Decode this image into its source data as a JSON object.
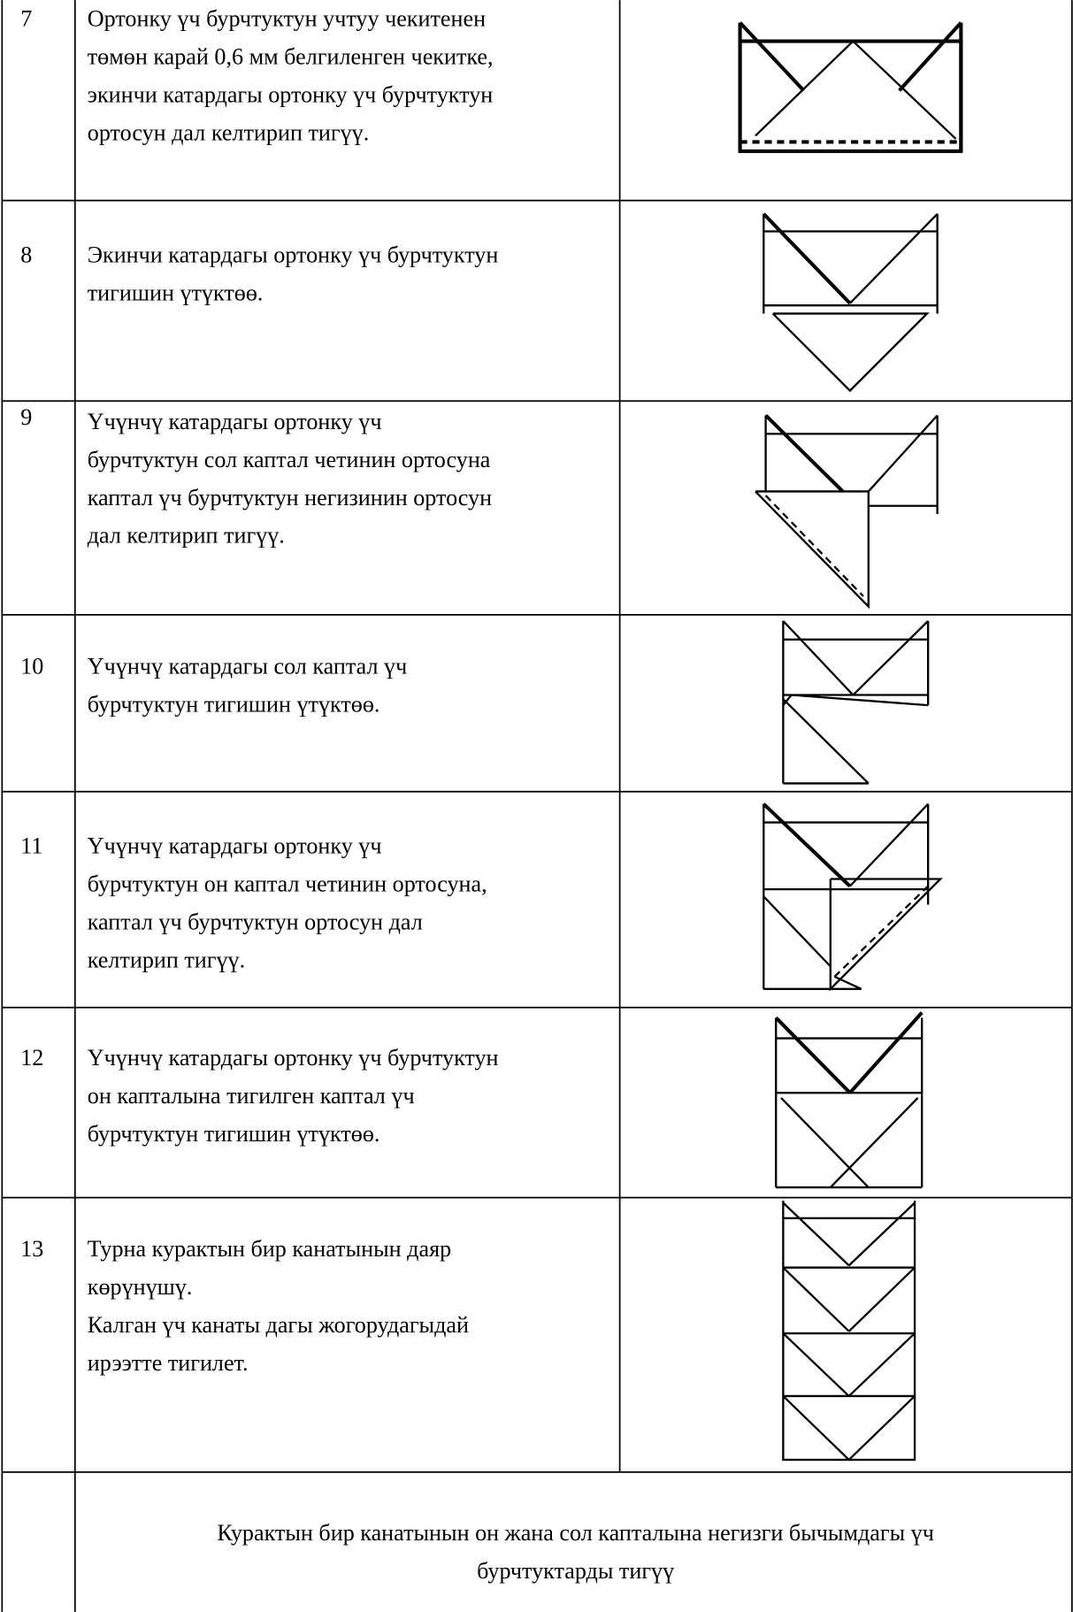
{
  "table": {
    "rows": [
      {
        "number": "7",
        "lines": [
          "Ортонку үч бурчтуктун учтуу чекитенен",
          "төмөн карай  0,6 мм  белгиленген чекитке,",
          "экинчи катардагы ортонку үч бурчтуктун",
          "ортосун дал келтирип   тигүү."
        ]
      },
      {
        "number": "8",
        "lines": [
          "Экинчи катардагы ортонку үч бурчтуктун",
          "тигишин үтүктөө."
        ]
      },
      {
        "number": "9",
        "lines": [
          " Үчүнчү катардагы ортонку   үч",
          "бурчтуктун сол каптал четинин ортосуна",
          "каптал үч бурчтуктун негизинин ортосун",
          "дал келтирип    тигүү."
        ]
      },
      {
        "number": "10",
        "lines": [
          "Үчүнчү катардагы сол каптал үч",
          "бурчтуктун  тигишин үтүктөө."
        ]
      },
      {
        "number": "11",
        "lines": [
          "Үчүнчү катардагы ортонку   үч",
          "бурчтуктун он каптал четинин ортосуна,",
          "каптал үч бурчтуктун ортосун дал",
          "келтирип    тигүү."
        ]
      },
      {
        "number": "12",
        "lines": [
          "Үчүнчү  катардагы ортонку үч бурчтуктун",
          "он капталына  тигилген каптал үч",
          "бурчтуктун тигишин үтүктөө."
        ]
      },
      {
        "number": "13",
        "lines": [
          "Турна курактын бир канатынын даяр",
          "көрүнүшү.",
          "Калган үч канаты дагы жогорудагыдай",
          "ирээтте тигилет."
        ]
      }
    ],
    "footer_lines": [
      "Курактын  бир канатынын он жана сол капталына негизги бычымдагы үч",
      "бурчтуктарды тигүү"
    ]
  }
}
